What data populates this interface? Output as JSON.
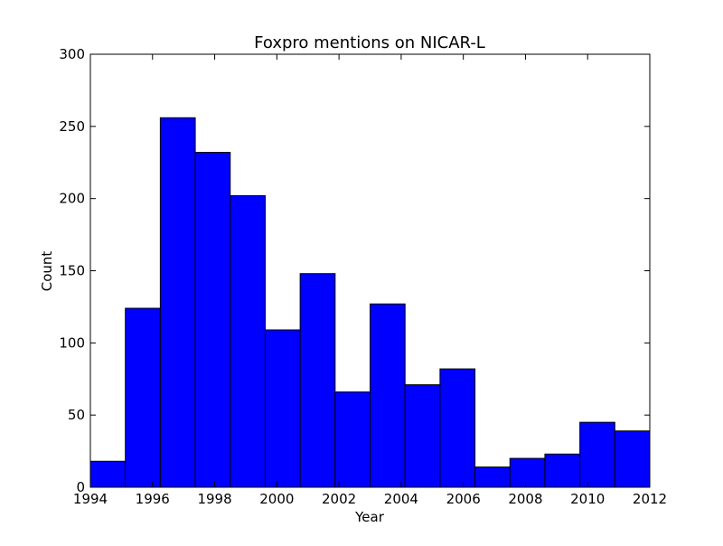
{
  "chart_data": {
    "type": "bar",
    "title": "Foxpro mentions on NICAR-L",
    "xlabel": "Year",
    "ylabel": "Count",
    "xlim": [
      1994,
      2012
    ],
    "ylim": [
      0,
      300
    ],
    "xticks": [
      "1994",
      "1996",
      "1998",
      "2000",
      "2002",
      "2004",
      "2006",
      "2008",
      "2010",
      "2012"
    ],
    "yticks": [
      "0",
      "50",
      "100",
      "150",
      "200",
      "250",
      "300"
    ],
    "bin_edges": [
      1994,
      1995.125,
      1996.25,
      1997.375,
      1998.5,
      1999.625,
      2000.75,
      2001.875,
      2003,
      2004.125,
      2005.25,
      2006.375,
      2007.5,
      2008.625,
      2009.75,
      2010.875,
      2012
    ],
    "values": [
      18,
      124,
      256,
      232,
      202,
      109,
      148,
      66,
      127,
      71,
      82,
      14,
      20,
      23,
      45,
      39
    ],
    "grid": false,
    "bar_color": "#0000ff",
    "edge_color": "#000000"
  }
}
